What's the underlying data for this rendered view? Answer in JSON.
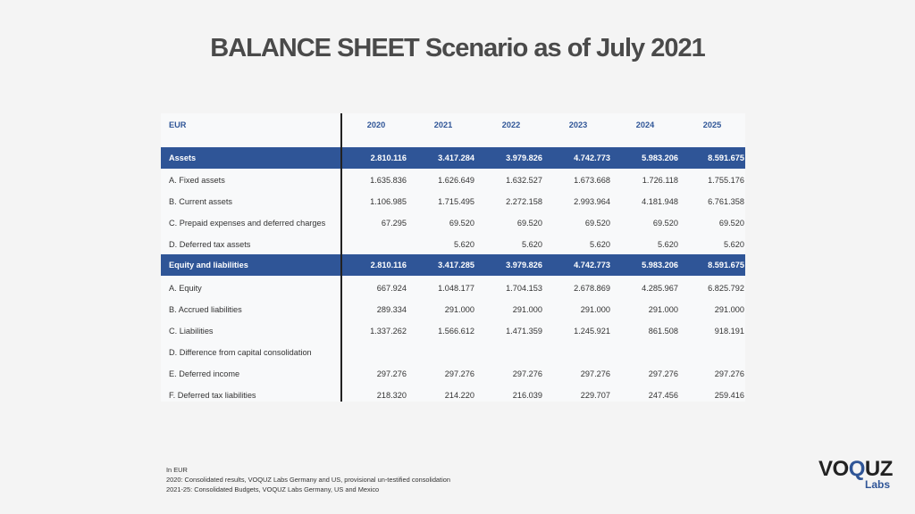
{
  "title": "BALANCE SHEET Scenario as of July 2021",
  "table": {
    "currency": "EUR",
    "years": [
      "2020",
      "2021",
      "2022",
      "2023",
      "2024",
      "2025"
    ],
    "assets_section": {
      "label": "Assets",
      "totals": [
        "2.810.116",
        "3.417.284",
        "3.979.826",
        "4.742.773",
        "5.983.206",
        "8.591.675"
      ],
      "rows": [
        {
          "label": "A. Fixed assets",
          "values": [
            "1.635.836",
            "1.626.649",
            "1.632.527",
            "1.673.668",
            "1.726.118",
            "1.755.176"
          ]
        },
        {
          "label": "B. Current assets",
          "values": [
            "1.106.985",
            "1.715.495",
            "2.272.158",
            "2.993.964",
            "4.181.948",
            "6.761.358"
          ]
        },
        {
          "label": "C. Prepaid expenses and deferred charges",
          "values": [
            "67.295",
            "69.520",
            "69.520",
            "69.520",
            "69.520",
            "69.520"
          ]
        },
        {
          "label": "D. Deferred tax assets",
          "values": [
            "",
            "5.620",
            "5.620",
            "5.620",
            "5.620",
            "5.620"
          ]
        }
      ]
    },
    "liabilities_section": {
      "label": "Equity and liabilities",
      "totals": [
        "2.810.116",
        "3.417.285",
        "3.979.826",
        "4.742.773",
        "5.983.206",
        "8.591.675"
      ],
      "rows": [
        {
          "label": "A. Equity",
          "values": [
            "667.924",
            "1.048.177",
            "1.704.153",
            "2.678.869",
            "4.285.967",
            "6.825.792"
          ]
        },
        {
          "label": "B. Accrued liabilities",
          "values": [
            "289.334",
            "291.000",
            "291.000",
            "291.000",
            "291.000",
            "291.000"
          ]
        },
        {
          "label": "C. Liabilities",
          "values": [
            "1.337.262",
            "1.566.612",
            "1.471.359",
            "1.245.921",
            "861.508",
            "918.191"
          ]
        },
        {
          "label": "D. Difference from capital consolidation",
          "values": [
            "",
            "",
            "",
            "",
            "",
            ""
          ]
        },
        {
          "label": "E. Deferred income",
          "values": [
            "297.276",
            "297.276",
            "297.276",
            "297.276",
            "297.276",
            "297.276"
          ]
        },
        {
          "label": "F. Deferred tax liabilities",
          "values": [
            "218.320",
            "214.220",
            "216.039",
            "229.707",
            "247.456",
            "259.416"
          ]
        }
      ]
    }
  },
  "footnotes": [
    "In EUR",
    "2020: Consolidated results, VOQUZ Labs Germany and US, provisional un-testified consolidation",
    "2021-25: Consolidated Budgets, VOQUZ Labs Germany, US and Mexico"
  ],
  "logo": {
    "prefix": "VO",
    "accent": "Q",
    "suffix": "UZ",
    "sub": "Labs"
  },
  "colors": {
    "band": "#2f5597",
    "header_text": "#2f5597",
    "title": "#4a4a4a"
  }
}
